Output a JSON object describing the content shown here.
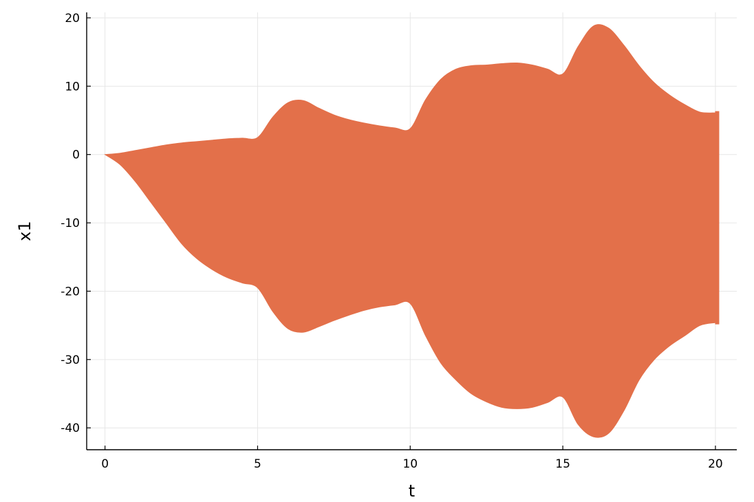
{
  "chart_data": {
    "type": "area",
    "xlabel": "t",
    "ylabel": "x1",
    "xlim": [
      -0.6,
      20.7
    ],
    "ylim": [
      -43.2,
      20.8
    ],
    "xticks": [
      0,
      5,
      10,
      15,
      20
    ],
    "xtick_labels": [
      "0",
      "5",
      "10",
      "15",
      "20"
    ],
    "yticks": [
      -40,
      -30,
      -20,
      -10,
      0,
      10,
      20
    ],
    "ytick_labels": [
      "-40",
      "-30",
      "-20",
      "-10",
      "0",
      "10",
      "20"
    ],
    "grid": true,
    "legend": "none",
    "series": [
      {
        "color": "#e3704a",
        "x": [
          0,
          0.5,
          1,
          1.5,
          2,
          2.5,
          3,
          3.5,
          4,
          4.5,
          5,
          5.5,
          6,
          6.5,
          7,
          7.5,
          8,
          8.5,
          9,
          9.5,
          10,
          10.5,
          11,
          11.5,
          12,
          12.5,
          13,
          13.5,
          14,
          14.5,
          15,
          15.5,
          16,
          16.5,
          17,
          17.5,
          18,
          18.5,
          19,
          19.5,
          20
        ],
        "upper": [
          0,
          0.2,
          0.6,
          1.0,
          1.4,
          1.7,
          1.9,
          2.1,
          2.3,
          2.4,
          2.5,
          5.5,
          7.6,
          7.9,
          6.8,
          5.8,
          5.1,
          4.6,
          4.2,
          3.9,
          3.8,
          8.0,
          11.0,
          12.5,
          13.0,
          13.1,
          13.3,
          13.4,
          13.1,
          12.5,
          11.8,
          15.8,
          18.8,
          18.5,
          16.0,
          13.0,
          10.5,
          8.7,
          7.3,
          6.2,
          6.1
        ],
        "lower": [
          0,
          -1.5,
          -4.0,
          -7.0,
          -10.0,
          -13.0,
          -15.2,
          -16.8,
          -18.0,
          -18.8,
          -19.5,
          -23.0,
          -25.5,
          -26.0,
          -25.2,
          -24.3,
          -23.5,
          -22.8,
          -22.3,
          -22.0,
          -21.8,
          -26.5,
          -30.5,
          -33.0,
          -35.0,
          -36.2,
          -37.0,
          -37.2,
          -37.0,
          -36.3,
          -35.5,
          -39.5,
          -41.3,
          -40.8,
          -37.5,
          -33.0,
          -30.0,
          -28.0,
          -26.5,
          -25.0,
          -24.6
        ],
        "end_edge": [
          6.3,
          -24.8
        ]
      }
    ]
  }
}
